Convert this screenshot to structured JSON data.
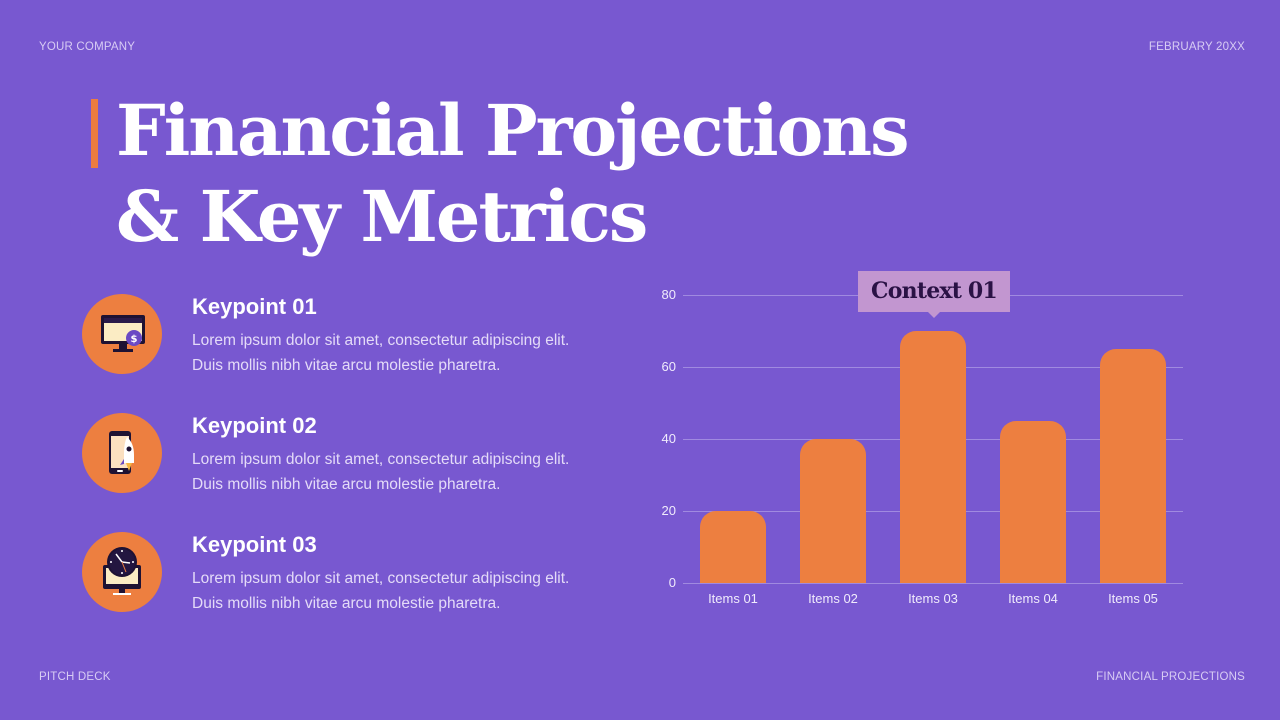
{
  "header": {
    "company": "YOUR COMPANY",
    "date": "FEBRUARY 20XX"
  },
  "footer": {
    "left": "PITCH DECK",
    "right": "FINANCIAL PROJECTIONS"
  },
  "title": {
    "line1": "Financial Projections",
    "line2": "& Key Metrics"
  },
  "colors": {
    "background": "#7858d0",
    "accent": "#ed7f40",
    "callout": "#c296d0",
    "callout_text": "#2a1245"
  },
  "keypoints": [
    {
      "title": "Keypoint 01",
      "line1": "Lorem ipsum dolor sit amet, consectetur adipiscing elit.",
      "line2": "Duis mollis nibh vitae arcu molestie pharetra.",
      "icon": "monitor-dollar-icon"
    },
    {
      "title": "Keypoint 02",
      "line1": "Lorem ipsum dolor sit amet, consectetur adipiscing elit.",
      "line2": "Duis mollis nibh vitae arcu molestie pharetra.",
      "icon": "phone-rocket-icon"
    },
    {
      "title": "Keypoint 03",
      "line1": "Lorem ipsum dolor sit amet, consectetur adipiscing elit.",
      "line2": "Duis mollis nibh vitae arcu molestie pharetra.",
      "icon": "monitor-clock-icon"
    }
  ],
  "chart_data": {
    "type": "bar",
    "title": "",
    "xlabel": "",
    "ylabel": "",
    "categories": [
      "Items 01",
      "Items 02",
      "Items 03",
      "Items 04",
      "Items 05"
    ],
    "values": [
      20,
      40,
      70,
      45,
      65
    ],
    "ylim": [
      0,
      80
    ],
    "yticks": [
      "0",
      "20",
      "40",
      "60",
      "80"
    ],
    "grid": true,
    "legend": null,
    "annotations": [
      {
        "label": "Context 01",
        "target": "Items 03"
      }
    ]
  }
}
